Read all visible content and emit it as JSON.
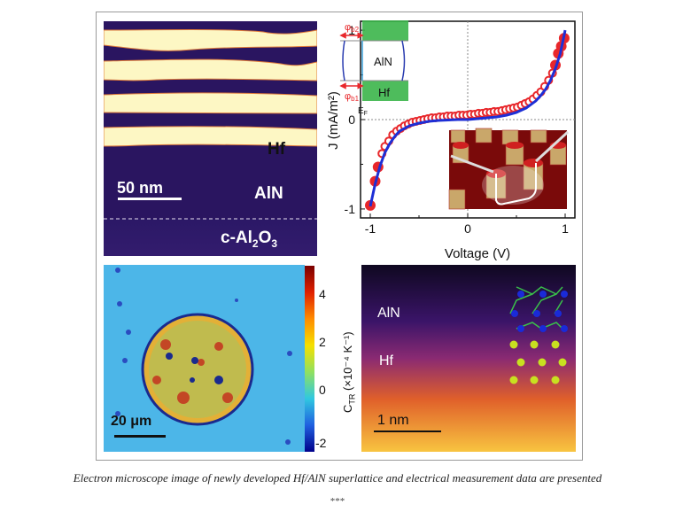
{
  "panels": {
    "tem_cross_section": {
      "labels": {
        "hf": "Hf",
        "aln": "AlN",
        "substrate_prefix": "c-Al",
        "substrate_sub1": "2",
        "substrate_mid": "O",
        "substrate_sub2": "3"
      },
      "scale_bar": "50 nm"
    },
    "jv_plot": {
      "inset_band": {
        "phi_b2": "φ",
        "phi_b2_sub": "b2",
        "phi_b1": "φ",
        "phi_b1_sub": "b1",
        "aln": "AlN",
        "hf": "Hf",
        "ef": "E",
        "ef_sub": "F"
      }
    },
    "thermoreflectance_map": {
      "scale_bar": "20 μm",
      "colorbar": {
        "label": "C",
        "label_sub": "TR",
        "label_units": " (×10⁻⁴ K⁻¹)",
        "ticks": [
          "4",
          "2",
          "0",
          "-2"
        ],
        "range": [
          -2,
          5
        ]
      }
    },
    "stem_image": {
      "labels": {
        "aln": "AlN",
        "hf": "Hf"
      },
      "scale_bar": "1 nm"
    }
  },
  "chart_data": {
    "type": "line",
    "title": "",
    "xlabel": "Voltage (V)",
    "ylabel": "J (mA/m²)",
    "xlim": [
      -1.1,
      1.1
    ],
    "ylim": [
      -1.1,
      1.1
    ],
    "xticks": [
      "-1",
      "0",
      "1"
    ],
    "yticks": [
      "1",
      "0",
      "-1"
    ],
    "grid": false,
    "reference_lines": {
      "x": 0,
      "y": 0
    },
    "series": [
      {
        "name": "measured",
        "style": "markers",
        "color": "#e8272b",
        "x": [
          -1.0,
          -0.95,
          -0.92,
          -0.88,
          -0.85,
          -0.81,
          -0.77,
          -0.73,
          -0.69,
          -0.65,
          -0.61,
          -0.57,
          -0.53,
          -0.49,
          -0.45,
          -0.41,
          -0.37,
          -0.33,
          -0.29,
          -0.25,
          -0.21,
          -0.17,
          -0.13,
          -0.09,
          -0.05,
          -0.01,
          0.03,
          0.07,
          0.11,
          0.15,
          0.19,
          0.23,
          0.27,
          0.31,
          0.35,
          0.39,
          0.43,
          0.47,
          0.51,
          0.55,
          0.59,
          0.63,
          0.67,
          0.71,
          0.75,
          0.79,
          0.83,
          0.87,
          0.9,
          0.93,
          0.96,
          0.99
        ],
        "y": [
          -0.96,
          -0.69,
          -0.53,
          -0.38,
          -0.3,
          -0.24,
          -0.17,
          -0.13,
          -0.1,
          -0.07,
          -0.05,
          -0.03,
          -0.02,
          -0.01,
          0.0,
          0.01,
          0.02,
          0.02,
          0.03,
          0.03,
          0.04,
          0.04,
          0.04,
          0.05,
          0.05,
          0.05,
          0.06,
          0.06,
          0.07,
          0.07,
          0.08,
          0.08,
          0.09,
          0.09,
          0.1,
          0.11,
          0.12,
          0.13,
          0.14,
          0.16,
          0.18,
          0.2,
          0.23,
          0.27,
          0.31,
          0.37,
          0.44,
          0.52,
          0.61,
          0.74,
          0.82,
          0.91
        ]
      },
      {
        "name": "fit",
        "style": "line",
        "color": "#1d2fd6",
        "x": [
          -1.0,
          -0.95,
          -0.9,
          -0.85,
          -0.8,
          -0.75,
          -0.7,
          -0.6,
          -0.5,
          -0.4,
          -0.3,
          -0.2,
          -0.1,
          0.0,
          0.1,
          0.2,
          0.3,
          0.4,
          0.5,
          0.6,
          0.7,
          0.75,
          0.8,
          0.85,
          0.9,
          0.95,
          1.0
        ],
        "y": [
          -0.97,
          -0.72,
          -0.52,
          -0.37,
          -0.27,
          -0.19,
          -0.13,
          -0.07,
          -0.04,
          -0.02,
          -0.01,
          -0.005,
          0.0,
          0.0,
          0.01,
          0.02,
          0.03,
          0.05,
          0.08,
          0.13,
          0.21,
          0.27,
          0.34,
          0.44,
          0.57,
          0.74,
          1.0
        ]
      }
    ]
  },
  "caption": "Electron microscope image of newly developed Hf/AlN superlattice and electrical measurement data are presented",
  "separator": "***"
}
